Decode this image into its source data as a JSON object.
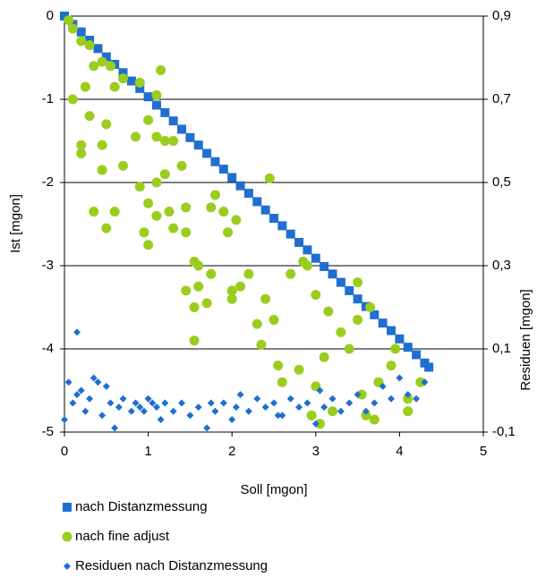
{
  "chart_data": {
    "type": "scatter",
    "xlabel": "Soll [mgon]",
    "ylabel": "Ist [mgon]",
    "y2label": "Residuen [mgon]",
    "xlim": [
      0,
      5
    ],
    "xticks": [
      0,
      1,
      2,
      3,
      4,
      5
    ],
    "ylim": [
      -5,
      0
    ],
    "yticks": [
      0,
      -1,
      -2,
      -3,
      -4,
      -5
    ],
    "y2lim": [
      -0.1,
      0.9
    ],
    "y2ticks": [
      {
        "value": 0.9,
        "label": "0,9"
      },
      {
        "value": 0.7,
        "label": "0,7"
      },
      {
        "value": 0.5,
        "label": "0,5"
      },
      {
        "value": 0.3,
        "label": "0,3"
      },
      {
        "value": 0.1,
        "label": "0,1"
      },
      {
        "value": -0.1,
        "label": "-0,1"
      }
    ],
    "grid": true,
    "legend": "bottom",
    "series": [
      {
        "name": "nach Distanzmessung",
        "color": "#1f6fd0",
        "marker": "square",
        "x": [
          0,
          0.1,
          0.2,
          0.3,
          0.4,
          0.5,
          0.6,
          0.7,
          0.8,
          0.9,
          1.0,
          1.1,
          1.2,
          1.3,
          1.4,
          1.5,
          1.6,
          1.7,
          1.8,
          1.9,
          2.0,
          2.1,
          2.2,
          2.3,
          2.4,
          2.5,
          2.6,
          2.7,
          2.8,
          2.9,
          3.0,
          3.1,
          3.2,
          3.3,
          3.4,
          3.5,
          3.6,
          3.7,
          3.8,
          3.9,
          4.0,
          4.1,
          4.2,
          4.3,
          4.35
        ],
        "values": [
          0,
          -0.1,
          -0.19,
          -0.29,
          -0.39,
          -0.49,
          -0.58,
          -0.68,
          -0.78,
          -0.87,
          -0.97,
          -1.07,
          -1.16,
          -1.26,
          -1.36,
          -1.46,
          -1.55,
          -1.65,
          -1.75,
          -1.84,
          -1.94,
          -2.04,
          -2.13,
          -2.23,
          -2.33,
          -2.43,
          -2.52,
          -2.62,
          -2.72,
          -2.81,
          -2.91,
          -3.01,
          -3.1,
          -3.2,
          -3.3,
          -3.4,
          -3.49,
          -3.59,
          -3.69,
          -3.78,
          -3.88,
          -3.98,
          -4.07,
          -4.17,
          -4.22
        ]
      },
      {
        "name": "nach fine adjust",
        "color": "#9acd1e",
        "marker": "circle",
        "x": [
          0.05,
          0.1,
          0.2,
          0.3,
          0.1,
          0.25,
          0.35,
          0.45,
          0.55,
          0.3,
          0.5,
          0.2,
          0.2,
          0.45,
          0.45,
          0.7,
          0.35,
          0.6,
          0.5,
          0.6,
          0.7,
          0.9,
          1.1,
          1.15,
          0.85,
          1.0,
          1.1,
          1.2,
          1.3,
          1.4,
          1.2,
          1.1,
          0.9,
          1.0,
          1.1,
          1.25,
          1.45,
          0.95,
          1.0,
          1.3,
          1.45,
          1.55,
          1.6,
          1.75,
          1.6,
          1.45,
          1.55,
          1.7,
          1.75,
          1.8,
          1.9,
          1.95,
          2.05,
          2.0,
          2.1,
          2.0,
          2.2,
          2.4,
          2.3,
          2.5,
          2.35,
          2.55,
          2.6,
          2.8,
          2.7,
          2.85,
          2.9,
          3.0,
          3.15,
          3.3,
          3.4,
          3.1,
          3.0,
          2.95,
          3.05,
          3.2,
          3.55,
          3.6,
          3.7,
          3.75,
          3.9,
          4.1,
          4.25,
          4.1,
          3.5,
          3.65,
          3.95,
          1.55,
          2.45,
          3.5
        ],
        "values": [
          -0.05,
          -0.15,
          -0.3,
          -0.35,
          -1.0,
          -0.85,
          -0.6,
          -0.55,
          -0.6,
          -1.2,
          -1.3,
          -1.55,
          -1.65,
          -1.55,
          -1.85,
          -1.8,
          -2.35,
          -2.35,
          -2.55,
          -0.85,
          -0.75,
          -0.8,
          -0.95,
          -0.65,
          -1.45,
          -1.25,
          -1.45,
          -1.5,
          -1.5,
          -1.8,
          -1.9,
          -2.0,
          -2.05,
          -2.25,
          -2.4,
          -2.35,
          -2.3,
          -2.6,
          -2.75,
          -2.55,
          -2.6,
          -2.95,
          -3.0,
          -3.1,
          -3.25,
          -3.3,
          -3.5,
          -3.45,
          -2.3,
          -2.15,
          -2.35,
          -2.6,
          -2.45,
          -3.3,
          -3.25,
          -3.4,
          -3.1,
          -3.4,
          -3.7,
          -3.65,
          -3.95,
          -4.2,
          -4.4,
          -4.25,
          -3.1,
          -2.95,
          -3.0,
          -3.35,
          -3.55,
          -3.8,
          -4.0,
          -4.1,
          -4.45,
          -4.8,
          -4.9,
          -4.75,
          -4.55,
          -4.8,
          -4.85,
          -4.4,
          -4.2,
          -4.6,
          -4.4,
          -4.75,
          -3.2,
          -3.5,
          -4.0,
          -3.9,
          -1.95,
          -3.65
        ]
      },
      {
        "name": "Residuen nach Distanzmessung",
        "color": "#1f6fd0",
        "marker": "diamond",
        "axis": "y2",
        "x": [
          0.0,
          0.05,
          0.1,
          0.15,
          0.2,
          0.25,
          0.3,
          0.35,
          0.4,
          0.45,
          0.5,
          0.55,
          0.6,
          0.65,
          0.7,
          0.8,
          0.85,
          0.9,
          0.95,
          1.0,
          1.1,
          1.15,
          1.2,
          1.3,
          1.4,
          1.5,
          1.6,
          1.7,
          1.75,
          1.8,
          1.9,
          2.0,
          2.05,
          2.1,
          2.2,
          2.3,
          2.4,
          2.5,
          2.6,
          2.7,
          2.8,
          2.9,
          3.0,
          3.05,
          3.1,
          3.2,
          3.3,
          3.4,
          3.5,
          3.6,
          3.7,
          3.8,
          3.9,
          4.0,
          4.1,
          4.2,
          4.3,
          0.15,
          1.05,
          2.55
        ],
        "values": [
          -0.07,
          0.02,
          -0.03,
          0.14,
          0.0,
          -0.05,
          -0.02,
          0.03,
          0.02,
          -0.06,
          0.01,
          -0.03,
          -0.09,
          -0.04,
          -0.02,
          -0.05,
          -0.03,
          -0.04,
          -0.05,
          -0.02,
          -0.04,
          -0.07,
          -0.03,
          -0.05,
          -0.03,
          -0.06,
          -0.04,
          -0.09,
          -0.03,
          -0.05,
          -0.03,
          -0.07,
          -0.04,
          -0.01,
          -0.05,
          -0.02,
          -0.04,
          -0.03,
          -0.06,
          -0.02,
          -0.04,
          -0.03,
          -0.08,
          0.0,
          -0.04,
          -0.02,
          -0.05,
          -0.03,
          -0.01,
          -0.05,
          -0.03,
          0.01,
          -0.02,
          0.03,
          -0.01,
          -0.02,
          0.02,
          -0.01,
          -0.03,
          -0.06
        ]
      }
    ]
  }
}
